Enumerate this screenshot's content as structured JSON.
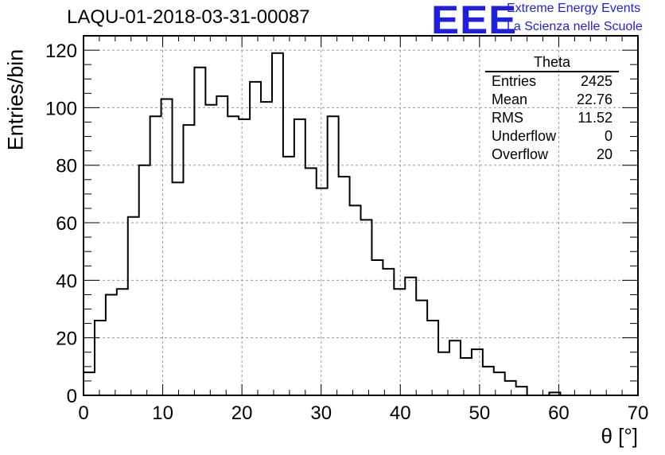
{
  "title": "LAQU-01-2018-03-31-00087",
  "logo": {
    "text": "EEE",
    "line1": "Extreme Energy Events",
    "line2": "La Scienza nelle Scuole",
    "color": "#1f1fe0"
  },
  "stats": {
    "title": "Theta",
    "rows": [
      {
        "label": "Entries",
        "value": "2425"
      },
      {
        "label": "Mean",
        "value": "22.76"
      },
      {
        "label": "RMS",
        "value": "11.52"
      },
      {
        "label": "Underflow",
        "value": "0"
      },
      {
        "label": "Overflow",
        "value": "20"
      }
    ]
  },
  "chart_data": {
    "type": "bar",
    "title": "LAQU-01-2018-03-31-00087",
    "xlabel": "θ [°]",
    "ylabel": "Entries/bin",
    "xlim": [
      0,
      70
    ],
    "ylim": [
      0,
      125
    ],
    "bin_width": 1.4,
    "grid": true,
    "xticks": [
      0,
      10,
      20,
      30,
      40,
      50,
      60,
      70
    ],
    "yticks": [
      0,
      20,
      40,
      60,
      80,
      100,
      120
    ],
    "values": [
      8,
      26,
      35,
      37,
      62,
      80,
      97,
      103,
      74,
      94,
      114,
      101,
      104,
      97,
      96,
      109,
      102,
      119,
      83,
      96,
      79,
      72,
      97,
      76,
      66,
      61,
      47,
      44,
      37,
      41,
      33,
      26,
      15,
      19,
      13,
      16,
      10,
      8,
      5,
      3,
      0,
      0,
      1,
      0,
      0,
      0,
      0,
      0,
      0,
      0
    ]
  }
}
